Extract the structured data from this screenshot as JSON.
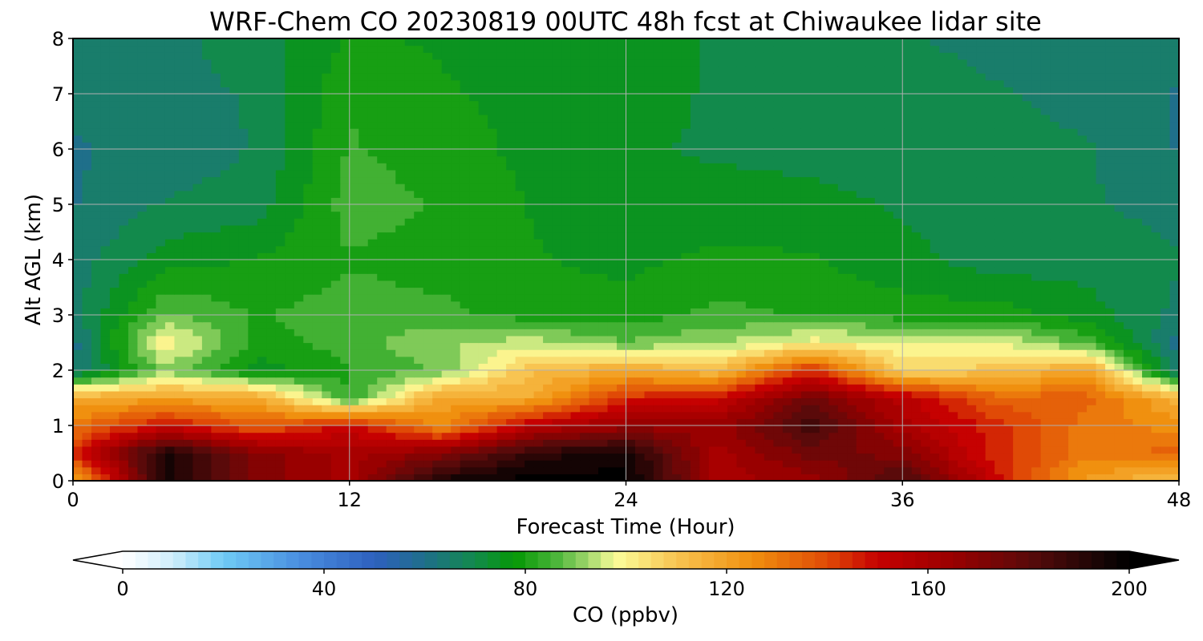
{
  "chart_data": {
    "type": "heatmap",
    "title": "WRF-Chem CO  20230819 00UTC 48h fcst at Chiwaukee lidar site",
    "xlabel": "Forecast Time (Hour)",
    "ylabel": "Alt AGL (km)",
    "xlim": [
      0,
      48
    ],
    "ylim": [
      0,
      8
    ],
    "xticks": [
      0,
      12,
      24,
      36,
      48
    ],
    "yticks": [
      0,
      1,
      2,
      3,
      4,
      5,
      6,
      7,
      8
    ],
    "grid": true,
    "x": [
      0,
      4,
      8,
      12,
      16,
      20,
      24,
      28,
      32,
      36,
      40,
      44,
      48
    ],
    "y": [
      0,
      0.5,
      1,
      1.5,
      2,
      2.5,
      3,
      4,
      5,
      6,
      7,
      8
    ],
    "z": [
      [
        115,
        195,
        170,
        160,
        195,
        200,
        200,
        160,
        165,
        185,
        150,
        120,
        110
      ],
      [
        145,
        195,
        170,
        160,
        170,
        190,
        195,
        160,
        175,
        170,
        145,
        130,
        135
      ],
      [
        130,
        150,
        135,
        150,
        125,
        155,
        165,
        165,
        185,
        160,
        145,
        130,
        125
      ],
      [
        118,
        120,
        118,
        82,
        120,
        118,
        145,
        150,
        175,
        155,
        135,
        135,
        115
      ],
      [
        62,
        90,
        75,
        82,
        88,
        112,
        118,
        112,
        145,
        105,
        110,
        120,
        62
      ],
      [
        60,
        102,
        80,
        85,
        92,
        95,
        88,
        92,
        100,
        98,
        98,
        85,
        60
      ],
      [
        65,
        88,
        82,
        85,
        84,
        80,
        80,
        84,
        82,
        80,
        80,
        75,
        66
      ],
      [
        65,
        75,
        78,
        82,
        80,
        78,
        76,
        79,
        78,
        74,
        70,
        70,
        68
      ],
      [
        62,
        68,
        70,
        85,
        82,
        77,
        74,
        74,
        74,
        72,
        70,
        68,
        66
      ],
      [
        62,
        64,
        68,
        83,
        80,
        76,
        73,
        72,
        71,
        70,
        69,
        68,
        62
      ],
      [
        64,
        66,
        68,
        82,
        78,
        76,
        74,
        72,
        71,
        70,
        68,
        66,
        62
      ],
      [
        64,
        66,
        70,
        78,
        77,
        75,
        74,
        72,
        70,
        68,
        66,
        64,
        64
      ]
    ],
    "colorbar": {
      "label": "CO  (ppbv)",
      "min": 0,
      "max": 200,
      "ticks": [
        0,
        40,
        80,
        120,
        160,
        200
      ],
      "extend": "both",
      "stops": [
        {
          "v": 0,
          "c": "#ffffff"
        },
        {
          "v": 10,
          "c": "#cfeefb"
        },
        {
          "v": 20,
          "c": "#6fcbf5"
        },
        {
          "v": 35,
          "c": "#4a8fe0"
        },
        {
          "v": 50,
          "c": "#2e60be"
        },
        {
          "v": 60,
          "c": "#1f6f8a"
        },
        {
          "v": 70,
          "c": "#128a4c"
        },
        {
          "v": 78,
          "c": "#069806"
        },
        {
          "v": 86,
          "c": "#4ab539"
        },
        {
          "v": 92,
          "c": "#9ad468"
        },
        {
          "v": 98,
          "c": "#fbfd9a"
        },
        {
          "v": 110,
          "c": "#f8c451"
        },
        {
          "v": 125,
          "c": "#f0900f"
        },
        {
          "v": 140,
          "c": "#e04a06"
        },
        {
          "v": 150,
          "c": "#c60101"
        },
        {
          "v": 165,
          "c": "#990000"
        },
        {
          "v": 180,
          "c": "#5a0a0a"
        },
        {
          "v": 195,
          "c": "#140404"
        },
        {
          "v": 200,
          "c": "#000000"
        }
      ]
    }
  }
}
